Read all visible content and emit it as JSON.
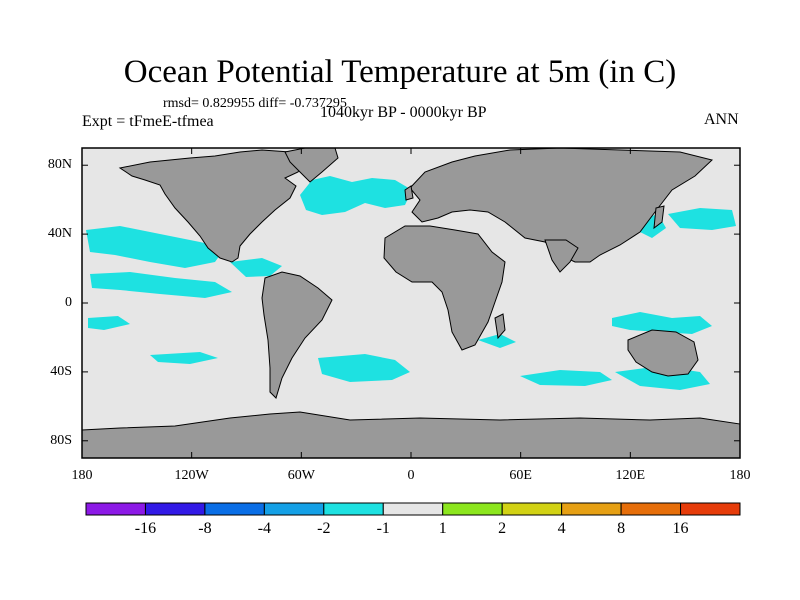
{
  "title": "Ocean Potential Temperature at 5m (in C)",
  "stats": "rmsd= 0.829955  diff= -0.737295",
  "experiment": "Expt = tFmeE-tfmea",
  "period": "1040kyr BP - 0000kyr BP",
  "season": "ANN",
  "map_colors": {
    "ocean_neutral": "#e6e6e6",
    "land": "#999999",
    "cool_anomaly": "#1ee1e1",
    "strong_cool_anomaly": "#16b4e6"
  },
  "chart_data": {
    "type": "heatmap",
    "projection": "cylindrical-equidistant",
    "lon_range": [
      -180,
      180
    ],
    "lat_range": [
      -90,
      90
    ],
    "x_ticks": [
      {
        "value": -180,
        "label": "180"
      },
      {
        "value": -120,
        "label": "120W"
      },
      {
        "value": -60,
        "label": "60W"
      },
      {
        "value": 0,
        "label": "0"
      },
      {
        "value": 60,
        "label": "60E"
      },
      {
        "value": 120,
        "label": "120E"
      },
      {
        "value": 180,
        "label": "180"
      }
    ],
    "y_ticks": [
      {
        "value": 80,
        "label": "80N"
      },
      {
        "value": 40,
        "label": "40N"
      },
      {
        "value": 0,
        "label": "0"
      },
      {
        "value": -40,
        "label": "40S"
      },
      {
        "value": -80,
        "label": "80S"
      }
    ],
    "colorbar": {
      "colors": [
        "#8c19e6",
        "#3219e6",
        "#0a6ee6",
        "#14a0e6",
        "#1ee1e1",
        "#e6e6e6",
        "#8ce61e",
        "#d2d214",
        "#e6a014",
        "#e66e0a",
        "#e63c0a"
      ],
      "labels": [
        "-16",
        "-8",
        "-4",
        "-2",
        "-1",
        "1",
        "2",
        "4",
        "8",
        "16"
      ]
    }
  }
}
